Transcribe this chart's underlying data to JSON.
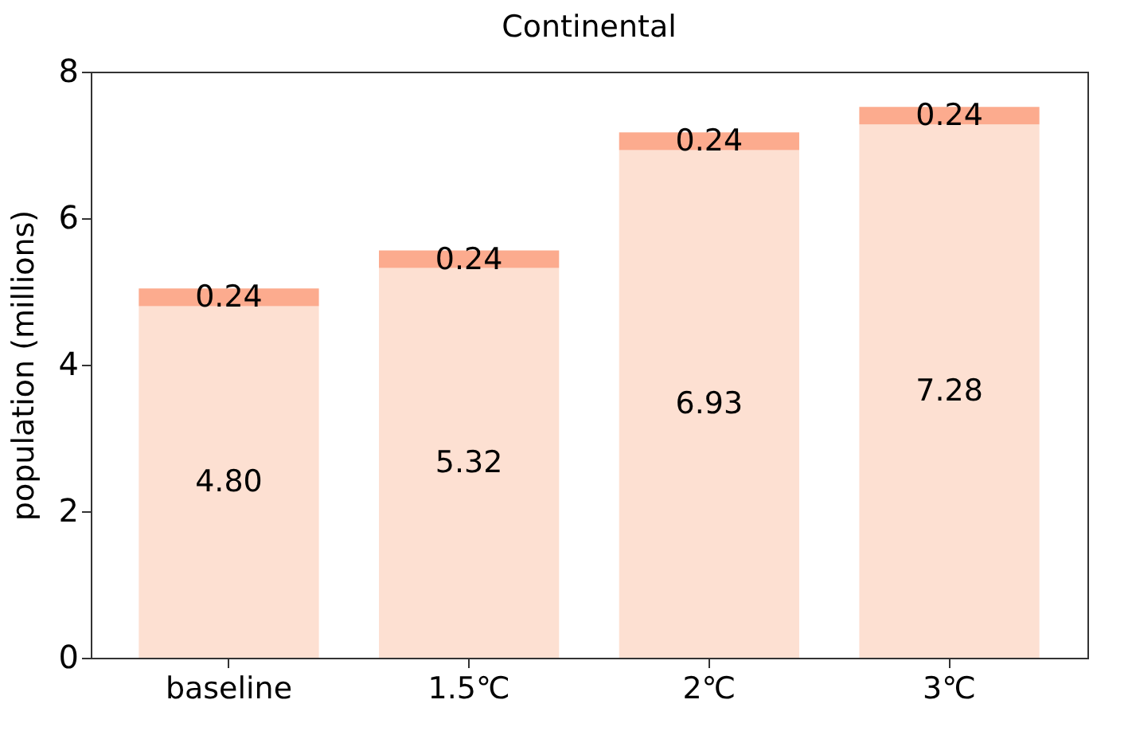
{
  "chart_data": {
    "type": "bar",
    "title": "Continental",
    "ylabel": "population (millions)",
    "categories": [
      "baseline",
      "1.5℃",
      "2℃",
      "3℃"
    ],
    "stacked": true,
    "ylim": [
      0,
      8
    ],
    "yticks": [
      0,
      2,
      4,
      6,
      8
    ],
    "series": [
      {
        "color": "#fde0d2",
        "values": [
          4.8,
          5.32,
          6.93,
          7.28
        ],
        "value_labels": [
          "4.80",
          "5.32",
          "6.93",
          "7.28"
        ]
      },
      {
        "color": "#fcab8e",
        "values": [
          0.24,
          0.24,
          0.24,
          0.24
        ],
        "value_labels": [
          "0.24",
          "0.24",
          "0.24",
          "0.24"
        ]
      }
    ]
  }
}
